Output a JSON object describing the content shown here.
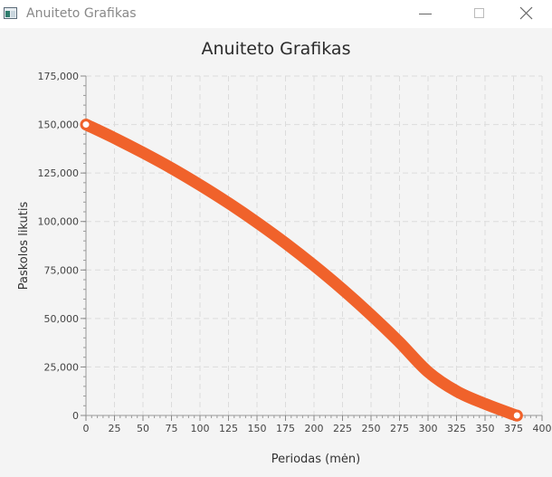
{
  "window": {
    "title": "Anuiteto Grafikas",
    "icon": "java-app-icon",
    "controls": [
      "minimize-icon",
      "maximize-icon",
      "close-icon"
    ]
  },
  "chart_data": {
    "type": "line",
    "title": "Anuiteto Grafikas",
    "xlabel": "Periodas (mėn)",
    "ylabel": "Paskolos likutis",
    "xlim": [
      0,
      400
    ],
    "ylim": [
      0,
      175000
    ],
    "x_ticks": [
      "0",
      "25",
      "50",
      "75",
      "100",
      "125",
      "150",
      "175",
      "200",
      "225",
      "250",
      "275",
      "300",
      "325",
      "350",
      "375",
      "400"
    ],
    "y_ticks": [
      "0",
      "25,000",
      "50,000",
      "75,000",
      "100,000",
      "125,000",
      "150,000",
      "175,000"
    ],
    "grid": true,
    "legend": "none",
    "series_color": "#f0622b",
    "series": [
      {
        "x": [
          0,
          25,
          50,
          75,
          100,
          125,
          150,
          175,
          200,
          225,
          250,
          275,
          300,
          325,
          350,
          375,
          378
        ],
        "values": [
          150000,
          143000,
          135500,
          127500,
          118800,
          109500,
          99500,
          88800,
          77300,
          65000,
          51800,
          37700,
          22500,
          12500,
          6000,
          500,
          0
        ]
      }
    ]
  }
}
